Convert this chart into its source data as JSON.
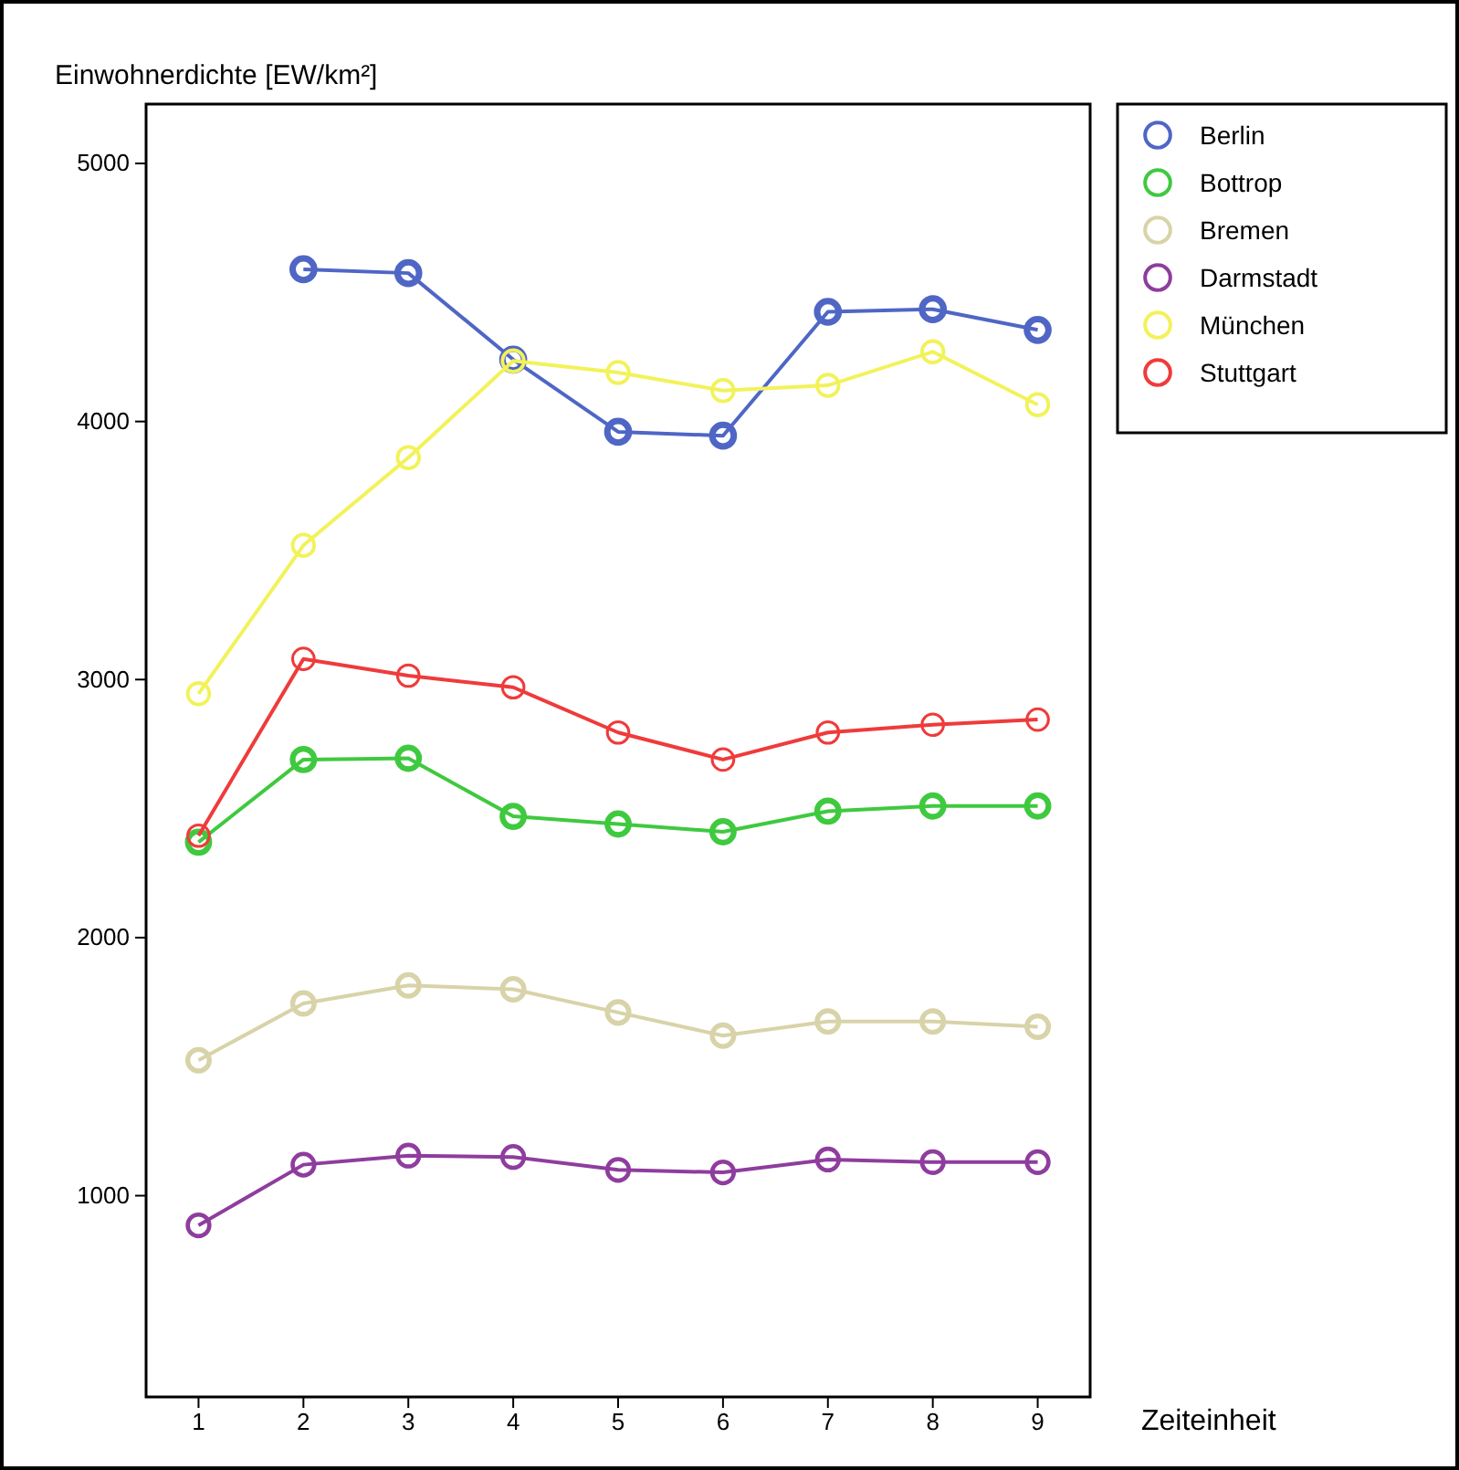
{
  "chart_data": {
    "type": "line",
    "xlabel": "Zeiteinheit",
    "ylabel": "Einwohnerdichte [EW/km²]",
    "x": [
      1,
      2,
      3,
      4,
      5,
      6,
      7,
      8,
      9
    ],
    "xlim": [
      0.5,
      9.5
    ],
    "xticks": [
      1,
      2,
      3,
      4,
      5,
      6,
      7,
      8,
      9
    ],
    "ylim": [
      220,
      5230
    ],
    "yticks": [
      1000,
      2000,
      3000,
      4000,
      5000
    ],
    "grid": false,
    "legend": "top right",
    "marker": "circle",
    "line_style": "solid",
    "series": [
      {
        "name": "Berlin",
        "color": "#4f66c5",
        "values": [
          null,
          4590,
          4575,
          4240,
          3960,
          3945,
          4425,
          4435,
          4355
        ]
      },
      {
        "name": "Bottrop",
        "color": "#3fc93f",
        "values": [
          2370,
          2690,
          2695,
          2470,
          2440,
          2410,
          2490,
          2510,
          2510
        ]
      },
      {
        "name": "Bremen",
        "color": "#d8d3a8",
        "values": [
          1525,
          1745,
          1815,
          1800,
          1710,
          1620,
          1675,
          1675,
          1655
        ]
      },
      {
        "name": "Darmstadt",
        "color": "#8e3d9e",
        "values": [
          885,
          1120,
          1155,
          1150,
          1100,
          1090,
          1140,
          1130,
          1130
        ]
      },
      {
        "name": "München",
        "color": "#f2f25a",
        "values": [
          2945,
          3520,
          3860,
          4235,
          4190,
          4120,
          4140,
          4270,
          4065
        ]
      },
      {
        "name": "Stuttgart",
        "color": "#ef3b3b",
        "values": [
          2395,
          3080,
          3015,
          2970,
          2795,
          2690,
          2795,
          2825,
          2845
        ]
      }
    ]
  }
}
